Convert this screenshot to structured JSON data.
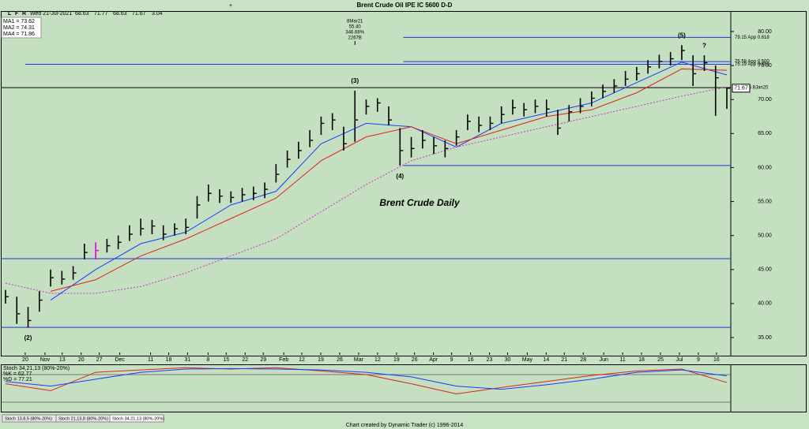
{
  "toolbar": [
    "L",
    "F",
    "R"
  ],
  "header": {
    "date": "Wed 21-Jul-2021",
    "quote": [
      68.63,
      71.77,
      68.63,
      71.67
    ],
    "change": 3.04
  },
  "footer": "Chart created by Dynamic Trader  (c) 1996-2014",
  "tabs": [
    "Stoch 13,8,5 (80%-20%)",
    "Stoch 21,13,8 (80%-20%)",
    "Stoch 34,21,13 (80%-20%)"
  ],
  "chart_data": [
    {
      "type": "ohlc",
      "title": "Brent Crude Oil IPE IC 5600 D-D",
      "annotation": "Brent Crude Daily",
      "color": "#000000",
      "high": [
        42.0,
        41.0,
        39.5,
        41.8,
        45.0,
        44.8,
        45.5,
        48.8,
        49.0,
        49.5,
        50.0,
        51.5,
        52.5,
        52.3,
        51.5,
        51.8,
        52.5,
        55.8,
        57.5,
        56.8,
        56.5,
        57.0,
        57.2,
        57.8,
        60.5,
        62.5,
        63.8,
        65.5,
        67.5,
        68.0,
        66.0,
        71.3,
        70.0,
        70.2,
        69.0,
        65.8,
        64.5,
        65.5,
        64.5,
        64.0,
        65.5,
        67.8,
        67.5,
        67.5,
        69.0,
        70.0,
        69.5,
        70.0,
        70.0,
        68.5,
        69.2,
        70.2,
        71.2,
        72.2,
        73.0,
        74.2,
        74.8,
        75.8,
        76.6,
        77.0,
        78.0,
        76.5,
        76.5,
        75.0,
        71.77
      ],
      "low": [
        40.0,
        37.0,
        36.5,
        38.8,
        42.5,
        42.8,
        43.5,
        46.5,
        46.5,
        47.5,
        48.0,
        49.2,
        50.0,
        50.2,
        49.3,
        50.0,
        50.2,
        52.5,
        55.0,
        54.8,
        54.8,
        55.0,
        55.2,
        55.5,
        57.8,
        60.0,
        61.3,
        63.0,
        64.8,
        65.5,
        62.5,
        63.8,
        67.8,
        68.2,
        66.2,
        60.3,
        61.5,
        62.8,
        62.0,
        61.5,
        63.2,
        65.5,
        65.2,
        65.5,
        66.5,
        67.8,
        67.5,
        68.0,
        67.5,
        64.8,
        66.8,
        68.0,
        69.0,
        70.2,
        71.0,
        72.0,
        72.8,
        73.8,
        74.6,
        75.0,
        75.8,
        72.0,
        74.2,
        67.6,
        68.63
      ],
      "close": [
        41.0,
        38.5,
        37.5,
        40.5,
        43.8,
        43.6,
        44.5,
        47.5,
        47.8,
        48.5,
        49.0,
        50.2,
        51.0,
        51.4,
        50.2,
        51.0,
        51.2,
        54.5,
        56.2,
        55.8,
        55.6,
        56.0,
        56.2,
        56.8,
        59.0,
        61.2,
        62.5,
        64.0,
        66.5,
        67.0,
        63.5,
        67.0,
        69.0,
        69.5,
        67.0,
        62.5,
        62.8,
        64.0,
        63.2,
        62.8,
        64.5,
        66.8,
        66.2,
        66.5,
        67.8,
        68.8,
        68.5,
        69.0,
        68.6,
        65.8,
        68.2,
        69.0,
        70.2,
        71.2,
        72.0,
        73.0,
        73.8,
        74.8,
        75.6,
        76.0,
        77.2,
        73.8,
        75.4,
        73.2,
        71.67
      ],
      "highlight_bar": 8,
      "highlight_color": "#e000e0",
      "xlim": [
        -0.35,
        64.35
      ],
      "ylim": [
        32.45,
        82.9
      ],
      "yticks": [
        {
          "value": 35,
          "label": "35.00"
        },
        {
          "value": 40,
          "label": "40.00"
        },
        {
          "value": 45,
          "label": "45.00"
        },
        {
          "value": 50,
          "label": "50.00"
        },
        {
          "value": 55,
          "label": "55.00"
        },
        {
          "value": 60,
          "label": "60.00"
        },
        {
          "value": 65,
          "label": "65.00"
        },
        {
          "value": 70,
          "label": "70.00"
        },
        {
          "value": 75,
          "label": "75.00"
        },
        {
          "value": 80,
          "label": "80.00"
        }
      ],
      "xticks": [
        {
          "value": 1.75,
          "label": "20"
        },
        {
          "value": 3.5,
          "label": "Nov"
        },
        {
          "value": 5.03,
          "label": "13"
        },
        {
          "value": 6.71,
          "label": "20"
        },
        {
          "value": 8.32,
          "label": "27"
        },
        {
          "value": 10.14,
          "label": "Dec"
        },
        {
          "value": 12.87,
          "label": "11"
        },
        {
          "value": 14.48,
          "label": "18"
        },
        {
          "value": 16.15,
          "label": "31"
        },
        {
          "value": 17.97,
          "label": "8"
        },
        {
          "value": 19.58,
          "label": "15"
        },
        {
          "value": 21.26,
          "label": "22"
        },
        {
          "value": 22.87,
          "label": "29"
        },
        {
          "value": 24.69,
          "label": "Feb"
        },
        {
          "value": 26.29,
          "label": "12"
        },
        {
          "value": 27.97,
          "label": "19"
        },
        {
          "value": 29.65,
          "label": "26"
        },
        {
          "value": 31.33,
          "label": "Mar"
        },
        {
          "value": 33.01,
          "label": "12"
        },
        {
          "value": 34.69,
          "label": "19"
        },
        {
          "value": 36.29,
          "label": "26"
        },
        {
          "value": 37.97,
          "label": "Apr"
        },
        {
          "value": 39.58,
          "label": "9"
        },
        {
          "value": 41.26,
          "label": "16"
        },
        {
          "value": 42.94,
          "label": "23"
        },
        {
          "value": 44.55,
          "label": "30"
        },
        {
          "value": 46.29,
          "label": "May"
        },
        {
          "value": 47.97,
          "label": "14"
        },
        {
          "value": 49.58,
          "label": "21"
        },
        {
          "value": 51.26,
          "label": "28"
        },
        {
          "value": 53.08,
          "label": "Jun"
        },
        {
          "value": 54.76,
          "label": "11"
        },
        {
          "value": 56.43,
          "label": "18"
        },
        {
          "value": 58.11,
          "label": "25"
        },
        {
          "value": 59.79,
          "label": "Jul"
        },
        {
          "value": 61.47,
          "label": "9"
        },
        {
          "value": 63.08,
          "label": "16"
        }
      ],
      "last_price": 71.67,
      "series": [
        {
          "name": "MA1",
          "legend_label": "MA1 = 73.62",
          "color": "#1a3cff",
          "style": "solid",
          "x": [
            4,
            8,
            12,
            16,
            20,
            24,
            28,
            32,
            36,
            40,
            44,
            48,
            52,
            56,
            60,
            64
          ],
          "values": [
            40.5,
            45.0,
            48.8,
            50.5,
            54.5,
            56.5,
            63.5,
            66.5,
            66.0,
            63.0,
            66.5,
            68.0,
            69.5,
            72.5,
            75.5,
            73.62
          ]
        },
        {
          "name": "MA2",
          "legend_label": "MA2 = 74.31",
          "color": "#e02020",
          "style": "solid",
          "x": [
            4,
            8,
            12,
            16,
            20,
            24,
            28,
            32,
            36,
            40,
            44,
            48,
            52,
            56,
            60,
            64
          ],
          "values": [
            41.8,
            43.5,
            47.0,
            49.5,
            52.5,
            55.5,
            61.0,
            64.5,
            66.0,
            63.5,
            65.5,
            67.5,
            68.5,
            71.0,
            74.5,
            74.31
          ]
        },
        {
          "name": "MA4",
          "legend_label": "MA4 = 71.86",
          "color": "#d030d0",
          "style": "dotted",
          "x": [
            0,
            4,
            8,
            12,
            16,
            20,
            24,
            28,
            32,
            36,
            40,
            44,
            48,
            52,
            56,
            60,
            64
          ],
          "values": [
            43.0,
            41.5,
            41.5,
            42.5,
            44.5,
            47.0,
            49.5,
            53.5,
            57.5,
            61.0,
            63.0,
            64.5,
            66.0,
            67.5,
            69.0,
            70.5,
            71.86
          ]
        }
      ],
      "levels": [
        {
          "value": 79.15,
          "label": "79.15 App 0.618",
          "from": 35.3,
          "color": "#2030e0"
        },
        {
          "value": 75.58,
          "label": "75.58 App 0.500",
          "from": 35.3,
          "color": "#2030e0"
        },
        {
          "value": 75.19,
          "label": "75.19 App 0.382",
          "from": 1.75,
          "color": "#2030e0"
        },
        {
          "value": 71.75,
          "label": "H 71.75 8Jan20",
          "from": -0.35,
          "color": "#000000"
        },
        {
          "value": 60.3,
          "from": 35.3,
          "color": "#2030e0"
        },
        {
          "value": 46.6,
          "from": -0.35,
          "color": "#2030e0"
        },
        {
          "value": 36.5,
          "from": -0.35,
          "color": "#2030e0"
        }
      ],
      "waves": [
        {
          "text": "(2)",
          "x": 2,
          "position": "below"
        },
        {
          "text": "(3)",
          "x": 31,
          "position": "above"
        },
        {
          "text": "(4)",
          "x": 35,
          "position": "below"
        },
        {
          "text": "(5)",
          "x": 60,
          "position": "above"
        },
        {
          "text": "?",
          "x": 62,
          "position": "above"
        }
      ],
      "pivot_note": {
        "x": 31,
        "lines": [
          "8Mar21",
          "55.40",
          "346.68%",
          "2267B"
        ]
      }
    },
    {
      "type": "line",
      "title": "Stoch 34,21,13 (80%-20%)",
      "xlim": [
        -0.35,
        64.35
      ],
      "ylim": [
        1.1,
        100.6
      ],
      "bands": [
        80,
        20
      ],
      "series": [
        {
          "name": "%K",
          "legend_label": "%K = 62.77",
          "color": "#e02020",
          "x": [
            0,
            4,
            8,
            12,
            16,
            20,
            24,
            28,
            32,
            36,
            40,
            44,
            48,
            52,
            56,
            60,
            64
          ],
          "values": [
            60,
            45,
            85,
            90,
            95,
            92,
            95,
            88,
            80,
            60,
            38,
            52,
            65,
            78,
            88,
            92,
            62.77
          ]
        },
        {
          "name": "%D",
          "legend_label": "%D = 77.21",
          "color": "#1a3cff",
          "x": [
            0,
            4,
            8,
            12,
            16,
            20,
            24,
            28,
            32,
            36,
            40,
            44,
            48,
            52,
            56,
            60,
            64
          ],
          "values": [
            65,
            55,
            70,
            85,
            92,
            93,
            92,
            90,
            85,
            75,
            55,
            48,
            58,
            70,
            85,
            90,
            77.21
          ]
        }
      ]
    }
  ]
}
